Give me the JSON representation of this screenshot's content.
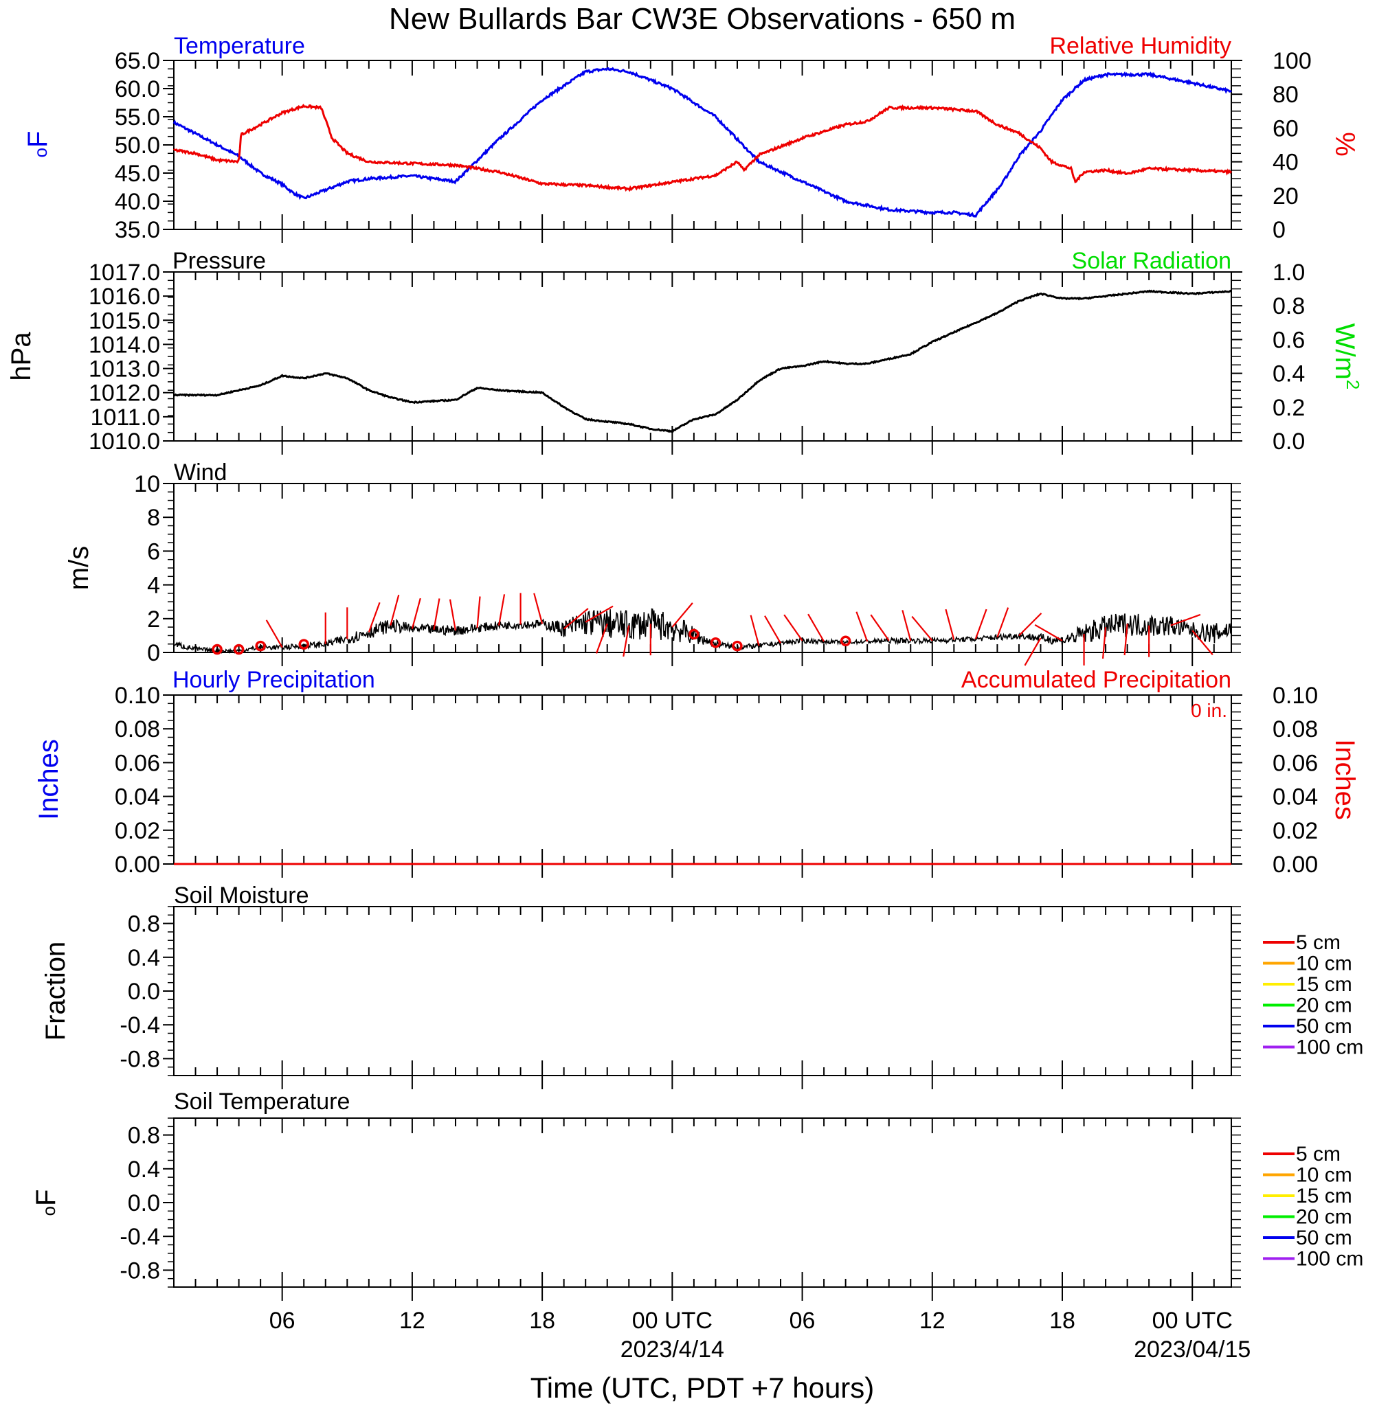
{
  "title": "New Bullards Bar CW3E Observations - 650 m",
  "x_axis": {
    "label": "Time (UTC, PDT +7 hours)",
    "ticks": [
      {
        "hour": 6,
        "label": "06",
        "sub": ""
      },
      {
        "hour": 12,
        "label": "12",
        "sub": ""
      },
      {
        "hour": 18,
        "label": "18",
        "sub": ""
      },
      {
        "hour": 24,
        "label": "00 UTC",
        "sub": "2023/4/14"
      },
      {
        "hour": 30,
        "label": "06",
        "sub": ""
      },
      {
        "hour": 36,
        "label": "12",
        "sub": ""
      },
      {
        "hour": 42,
        "label": "18",
        "sub": ""
      },
      {
        "hour": 48,
        "label": "00 UTC",
        "sub": "2023/04/15"
      }
    ]
  },
  "colors": {
    "temperature": "#0000ee",
    "humidity": "#ee0000",
    "pressure": "#000000",
    "solar": "#00dd00",
    "wind": "#000000",
    "barb": "#ee0000",
    "precip_hourly": "#0000ee",
    "precip_accum": "#ee0000"
  },
  "panels": {
    "temp_rh": {
      "left_title": "Temperature",
      "right_title": "Relative Humidity",
      "left_unit": "oF",
      "right_unit": "%",
      "left_ticks": [
        "65.0",
        "60.0",
        "55.0",
        "50.0",
        "45.0",
        "40.0",
        "35.0"
      ],
      "right_ticks": [
        "100",
        "80",
        "60",
        "40",
        "20",
        "0"
      ]
    },
    "pressure": {
      "left_title": "Pressure",
      "right_title": "Solar Radiation",
      "left_unit": "hPa",
      "right_unit": "W/m",
      "right_unit_sup": "2",
      "left_ticks": [
        "1017.0",
        "1016.0",
        "1015.0",
        "1014.0",
        "1013.0",
        "1012.0",
        "1011.0",
        "1010.0"
      ],
      "right_ticks": [
        "1.0",
        "0.8",
        "0.6",
        "0.4",
        "0.2",
        "0.0"
      ]
    },
    "wind": {
      "left_title": "Wind",
      "left_unit": "m/s",
      "left_ticks": [
        "10",
        "8",
        "6",
        "4",
        "2",
        "0"
      ]
    },
    "precip": {
      "left_title": "Hourly Precipitation",
      "right_title": "Accumulated Precipitation",
      "total_label": "0 in.",
      "left_unit": "Inches",
      "right_unit": "Inches",
      "left_ticks": [
        "0.10",
        "0.08",
        "0.06",
        "0.04",
        "0.02",
        "0.00"
      ],
      "right_ticks": [
        "0.10",
        "0.08",
        "0.06",
        "0.04",
        "0.02",
        "0.00"
      ]
    },
    "soil_moisture": {
      "left_title": "Soil Moisture",
      "left_unit": "Fraction",
      "left_ticks": [
        "0.8",
        "0.4",
        "0.0",
        "-0.4",
        "-0.8"
      ]
    },
    "soil_temp": {
      "left_title": "Soil Temperature",
      "left_unit": "oF",
      "left_ticks": [
        "0.8",
        "0.4",
        "0.0",
        "-0.4",
        "-0.8"
      ]
    }
  },
  "legend": [
    {
      "label": "5 cm",
      "color": "#ee0000"
    },
    {
      "label": "10 cm",
      "color": "#ffa500"
    },
    {
      "label": "15 cm",
      "color": "#ffee00"
    },
    {
      "label": "20 cm",
      "color": "#00ee00"
    },
    {
      "label": "50 cm",
      "color": "#0000ee"
    },
    {
      "label": "100 cm",
      "color": "#a020f0"
    }
  ],
  "chart_data": {
    "type": "line",
    "x_unit": "hours since 2023-04-13 00 UTC",
    "xlim": [
      1,
      49.8
    ],
    "series": [
      {
        "name": "Temperature",
        "unit": "°F",
        "ylim": [
          35,
          65
        ],
        "x": [
          1,
          2,
          3,
          4,
          5,
          6,
          6.5,
          7,
          8,
          9,
          10,
          12,
          14,
          16,
          18,
          20,
          21,
          22,
          23,
          24,
          26,
          28,
          30,
          32,
          34,
          36,
          37,
          38,
          39.2,
          40,
          41,
          42,
          43,
          44,
          46,
          48,
          49.8
        ],
        "values": [
          54,
          52,
          50,
          48,
          45,
          43,
          41.5,
          40.5,
          42,
          43.5,
          44,
          44.5,
          43.5,
          51,
          58,
          63,
          63.5,
          63,
          61.5,
          60,
          55,
          47,
          43.5,
          40,
          38.5,
          38,
          38,
          37.5,
          43,
          48,
          52.5,
          58,
          61.5,
          62.5,
          62.5,
          61,
          59.5
        ]
      },
      {
        "name": "Relative Humidity",
        "unit": "%",
        "ylim": [
          0,
          100
        ],
        "x": [
          1,
          2,
          3,
          4,
          4.1,
          5,
          6,
          7,
          7.8,
          8.3,
          9,
          10,
          12,
          14,
          16,
          18,
          20,
          22,
          24,
          26,
          27,
          27.3,
          28,
          30,
          32,
          33,
          34,
          36,
          38,
          39,
          40,
          41,
          41.5,
          42.4,
          42.6,
          43,
          44,
          45,
          46,
          48,
          49.8
        ],
        "values": [
          47,
          45,
          41,
          40,
          56,
          62,
          69,
          73,
          72,
          54,
          45,
          40,
          39,
          38,
          34,
          27,
          26,
          24,
          28,
          32,
          40,
          35,
          44,
          54,
          62,
          64,
          72,
          72,
          70,
          62,
          57,
          48,
          40,
          36,
          28,
          34,
          35,
          33,
          36,
          35,
          34
        ]
      },
      {
        "name": "Pressure",
        "unit": "hPa",
        "ylim": [
          1010,
          1017
        ],
        "x": [
          1,
          3,
          5,
          6,
          7,
          8,
          9,
          10,
          11,
          12,
          14,
          15,
          16,
          18,
          19,
          20,
          21,
          22,
          23,
          24,
          25,
          26,
          27,
          28,
          29,
          30,
          31,
          32,
          33,
          34,
          35,
          36,
          37,
          38,
          39,
          40,
          41,
          42,
          43,
          44,
          45,
          46,
          48,
          49.8
        ],
        "values": [
          1011.9,
          1011.9,
          1012.3,
          1012.7,
          1012.6,
          1012.8,
          1012.6,
          1012.1,
          1011.8,
          1011.6,
          1011.7,
          1012.2,
          1012.1,
          1012.0,
          1011.4,
          1010.9,
          1010.8,
          1010.7,
          1010.5,
          1010.4,
          1010.9,
          1011.1,
          1011.7,
          1012.5,
          1013.0,
          1013.1,
          1013.3,
          1013.2,
          1013.2,
          1013.4,
          1013.6,
          1014.1,
          1014.5,
          1014.9,
          1015.3,
          1015.8,
          1016.1,
          1015.9,
          1015.9,
          1016.0,
          1016.1,
          1016.2,
          1016.1,
          1016.2
        ]
      },
      {
        "name": "Wind",
        "unit": "m/s",
        "ylim": [
          0,
          10
        ],
        "x": [
          1,
          2,
          3,
          4,
          5,
          6,
          7,
          8,
          9,
          10,
          11,
          12,
          14,
          16,
          18,
          19,
          20,
          21,
          22,
          23,
          24,
          25,
          26,
          27,
          28,
          30,
          32,
          34,
          36,
          38,
          40,
          42,
          43,
          44,
          45,
          46,
          47,
          48,
          49,
          49.8
        ],
        "values": [
          0.5,
          0.2,
          0.1,
          0.1,
          0.3,
          0.3,
          0.4,
          0.5,
          0.8,
          1.2,
          1.6,
          1.4,
          1.3,
          1.6,
          1.7,
          1.4,
          1.8,
          1.7,
          1.6,
          1.7,
          1.5,
          1.0,
          0.5,
          0.3,
          0.4,
          0.7,
          0.6,
          0.7,
          0.7,
          0.8,
          1.0,
          0.7,
          1.1,
          1.5,
          1.7,
          1.6,
          1.6,
          1.3,
          1.1,
          1.4
        ],
        "noise": [
          0.2,
          0.15,
          0.1,
          0.1,
          0.15,
          0.15,
          0.15,
          0.2,
          0.3,
          0.4,
          0.4,
          0.3,
          0.3,
          0.25,
          0.25,
          0.5,
          0.8,
          0.9,
          0.9,
          0.9,
          0.9,
          0.5,
          0.2,
          0.15,
          0.15,
          0.15,
          0.1,
          0.15,
          0.15,
          0.15,
          0.2,
          0.3,
          0.6,
          0.7,
          0.7,
          0.7,
          0.6,
          0.5,
          0.6,
          0.6
        ]
      },
      {
        "name": "Hourly Precipitation",
        "unit": "in",
        "ylim": [
          0,
          0.1
        ],
        "x": [
          1,
          49.8
        ],
        "values": [
          0,
          0
        ]
      },
      {
        "name": "Accumulated Precipitation",
        "unit": "in",
        "ylim": [
          0,
          0.1
        ],
        "x": [
          1,
          49.8
        ],
        "values": [
          0,
          0
        ]
      },
      {
        "name": "Soil Moisture",
        "unit": "Fraction",
        "ylim": [
          -1,
          1
        ],
        "x": [],
        "values": []
      },
      {
        "name": "Soil Temperature",
        "unit": "°F",
        "ylim": [
          -1,
          1
        ],
        "x": [],
        "values": []
      }
    ],
    "wind_barbs": [
      {
        "hour": 3,
        "calm": true
      },
      {
        "hour": 4,
        "calm": true
      },
      {
        "hour": 5,
        "calm": true
      },
      {
        "hour": 6,
        "dir": 330
      },
      {
        "hour": 7,
        "calm": true
      },
      {
        "hour": 8,
        "dir": 0
      },
      {
        "hour": 9,
        "dir": 0
      },
      {
        "hour": 10,
        "dir": 20
      },
      {
        "hour": 11,
        "dir": 15
      },
      {
        "hour": 12,
        "dir": 15
      },
      {
        "hour": 13,
        "dir": 10
      },
      {
        "hour": 14,
        "dir": 350
      },
      {
        "hour": 15,
        "dir": 5
      },
      {
        "hour": 16,
        "dir": 10
      },
      {
        "hour": 17,
        "dir": 0
      },
      {
        "hour": 18,
        "dir": 345
      },
      {
        "hour": 19,
        "dir": 50
      },
      {
        "hour": 20,
        "dir": 60
      },
      {
        "hour": 21,
        "dir": 200
      },
      {
        "hour": 22,
        "dir": 190
      },
      {
        "hour": 23,
        "dir": 180
      },
      {
        "hour": 24,
        "dir": 40
      },
      {
        "hour": 25,
        "calm": true
      },
      {
        "hour": 26,
        "calm": true
      },
      {
        "hour": 27,
        "calm": true
      },
      {
        "hour": 28,
        "dir": 345
      },
      {
        "hour": 29,
        "dir": 330
      },
      {
        "hour": 30,
        "dir": 325
      },
      {
        "hour": 31,
        "dir": 330
      },
      {
        "hour": 32,
        "calm": true
      },
      {
        "hour": 33,
        "dir": 340
      },
      {
        "hour": 34,
        "dir": 325
      },
      {
        "hour": 35,
        "dir": 345
      },
      {
        "hour": 36,
        "dir": 320
      },
      {
        "hour": 37,
        "dir": 345
      },
      {
        "hour": 38,
        "dir": 20
      },
      {
        "hour": 39,
        "dir": 20
      },
      {
        "hour": 40,
        "dir": 45
      },
      {
        "hour": 41,
        "dir": 210
      },
      {
        "hour": 42,
        "dir": 300
      },
      {
        "hour": 43,
        "dir": 180
      },
      {
        "hour": 44,
        "dir": 185
      },
      {
        "hour": 45,
        "dir": 185
      },
      {
        "hour": 46,
        "dir": 180
      },
      {
        "hour": 47,
        "dir": 70
      },
      {
        "hour": 48,
        "dir": 140
      }
    ]
  }
}
